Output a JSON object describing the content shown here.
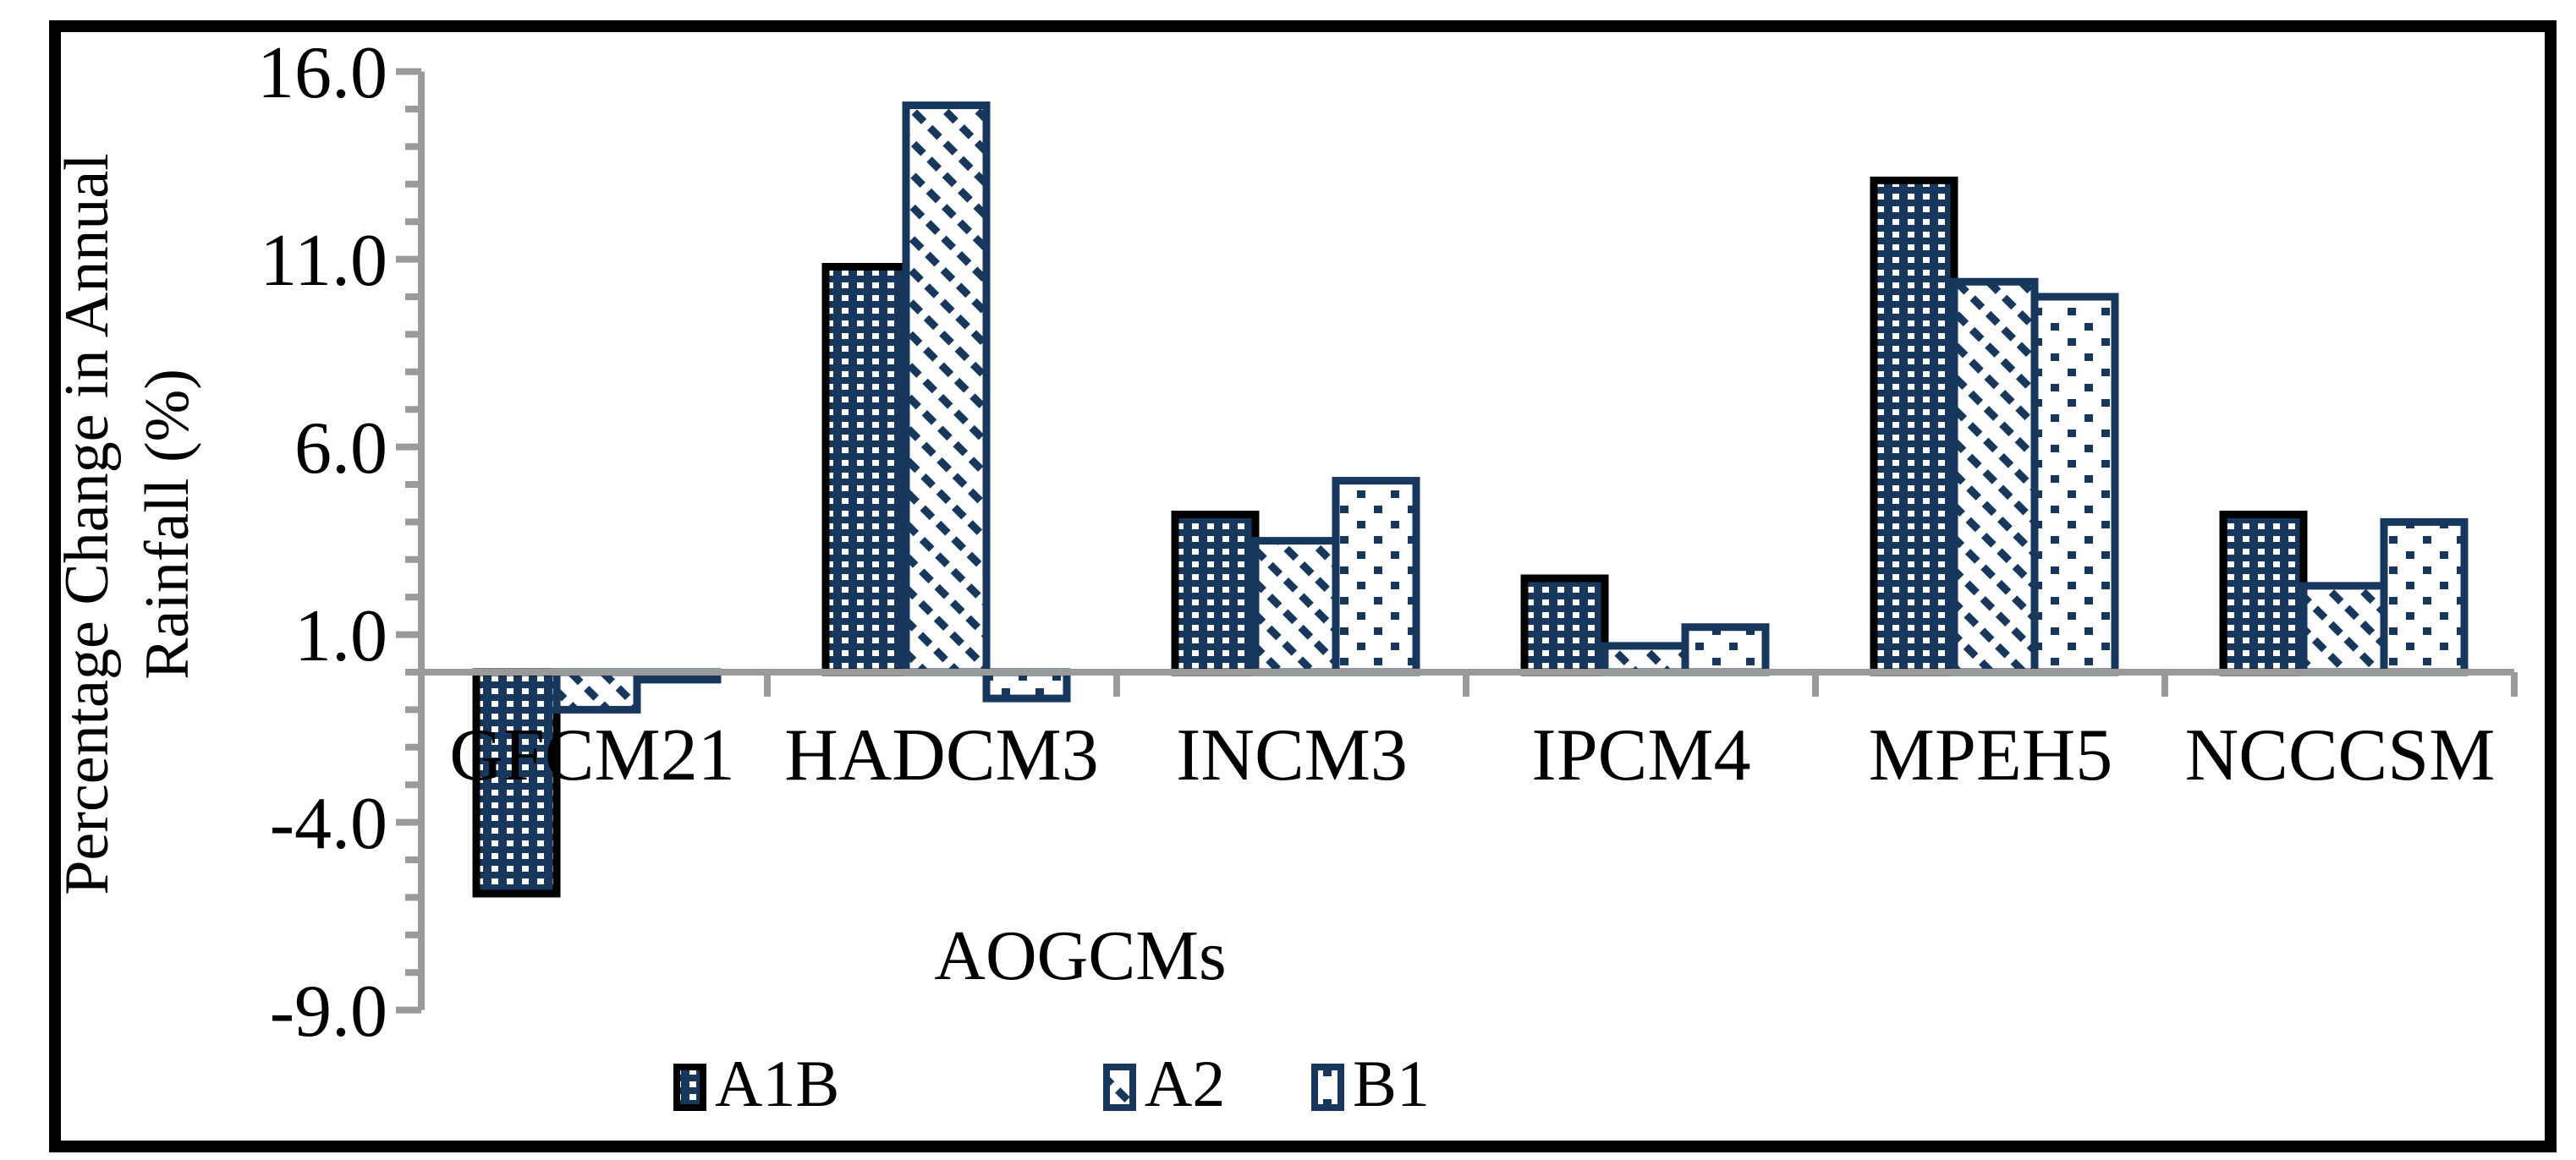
{
  "figure": {
    "y_axis_title_line1": "Percentage Change in Annual",
    "y_axis_title_line2": "Rainfall (%)",
    "x_axis_title": "AOGCMs"
  },
  "chart_data": {
    "type": "bar",
    "title": "",
    "xlabel": "AOGCMs",
    "ylabel": "Percentage Change in Annual Rainfall (%)",
    "categories": [
      "GFCM21",
      "HADCM3",
      "INCM3",
      "IPCM4",
      "MPEH5",
      "NCCCSM"
    ],
    "series": [
      {
        "name": "A1B",
        "pattern": "navy-white-dot-grid",
        "outline": "#000000",
        "values": [
          -5.9,
          10.8,
          4.2,
          2.5,
          13.1,
          4.2
        ]
      },
      {
        "name": "A2",
        "pattern": "diagonal-dashed-stripes",
        "outline": "#17375D",
        "values": [
          -1.0,
          15.1,
          3.5,
          0.7,
          10.4,
          2.3
        ]
      },
      {
        "name": "B1",
        "pattern": "sparse-square-dots",
        "outline": "#17375D",
        "values": [
          -0.2,
          -0.7,
          5.1,
          1.2,
          10.0,
          4.0
        ]
      }
    ],
    "ylim": [
      -9.0,
      16.0
    ],
    "yticks": [
      16.0,
      11.0,
      6.0,
      1.0,
      -4.0,
      -9.0
    ],
    "ytick_labels": [
      "16.0",
      "11.0",
      "6.0",
      "1.0",
      "-4.0",
      "-9.0"
    ],
    "minor_tick_step": 1.0,
    "grid": false,
    "legend_position": "bottom",
    "colors": {
      "bar_navy": "#17375D",
      "axis_gray": "#9A9A9A",
      "frame_black": "#000000",
      "background": "#ffffff"
    }
  },
  "legend": {
    "items": [
      "A1B",
      "A2",
      "B1"
    ]
  }
}
